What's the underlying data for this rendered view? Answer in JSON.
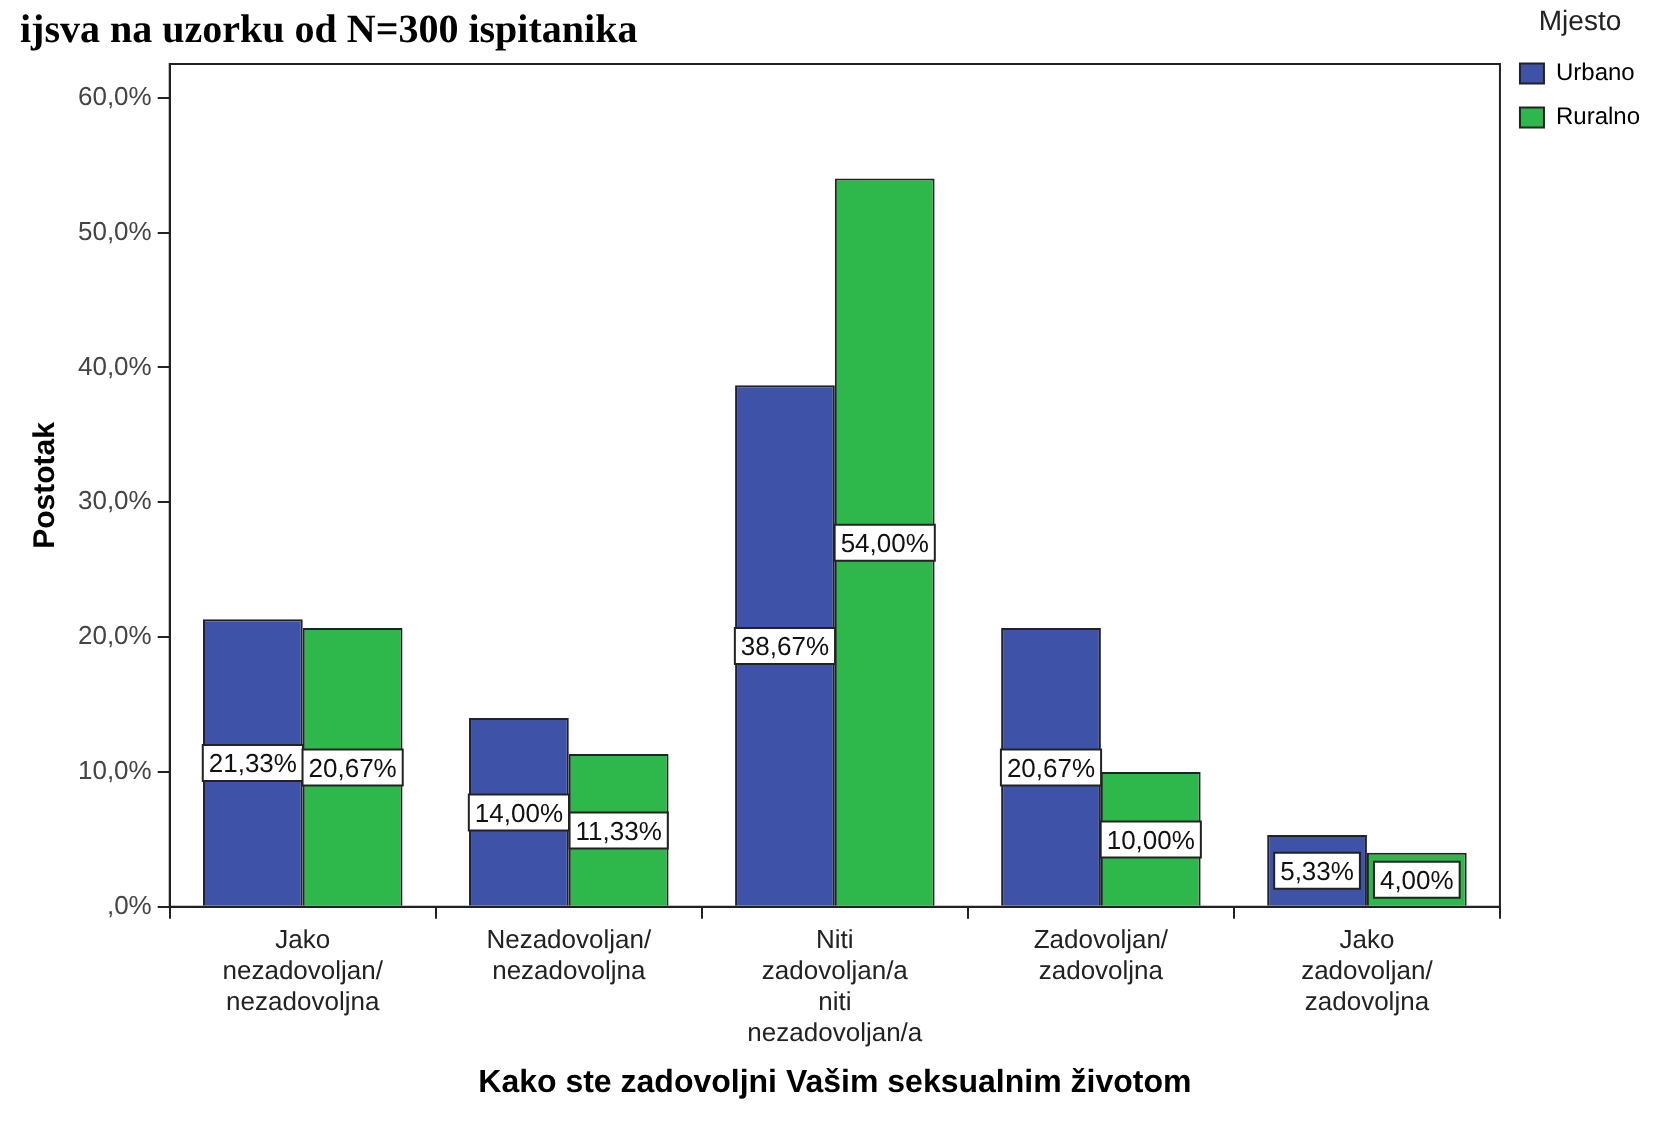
{
  "chart_data": {
    "type": "bar",
    "title": "ijsva na uzorku od N=300 ispitanika",
    "xlabel": "Kako ste zadovoljni Vašim seksualnim životom",
    "ylabel": "Postotak",
    "legend_title": "Mjesto",
    "legend": "top right",
    "categories": [
      "Jako\nnezadovoljan/\nnezadovoljna",
      "Nezadovoljan/\nnezadovoljna",
      "Niti\nzadovoljan/a\nniti\nnezadovoljan/a",
      "Zadovoljan/\nzadovoljna",
      "Jako\nzadovoljan/\nzadovoljna"
    ],
    "series": [
      {
        "name": "Urbano",
        "color": "#3e52a8",
        "values": [
          21.33,
          14.0,
          38.67,
          20.67,
          5.33
        ],
        "value_labels": [
          "21,33%",
          "14,00%",
          "38,67%",
          "20,67%",
          "5,33%"
        ]
      },
      {
        "name": "Ruralno",
        "color": "#2eb84b",
        "values": [
          20.67,
          11.33,
          54.0,
          10.0,
          4.0
        ],
        "value_labels": [
          "20,67%",
          "11,33%",
          "54,00%",
          "10,00%",
          "4,00%"
        ]
      }
    ],
    "ylim": [
      0,
      62.5
    ],
    "yticks": [
      {
        "value": 0,
        "label": ",0%"
      },
      {
        "value": 10,
        "label": "10,0%"
      },
      {
        "value": 20,
        "label": "20,0%"
      },
      {
        "value": 30,
        "label": "30,0%"
      },
      {
        "value": 40,
        "label": "40,0%"
      },
      {
        "value": 50,
        "label": "50,0%"
      },
      {
        "value": 60,
        "label": "60,0%"
      }
    ],
    "grid": false
  }
}
